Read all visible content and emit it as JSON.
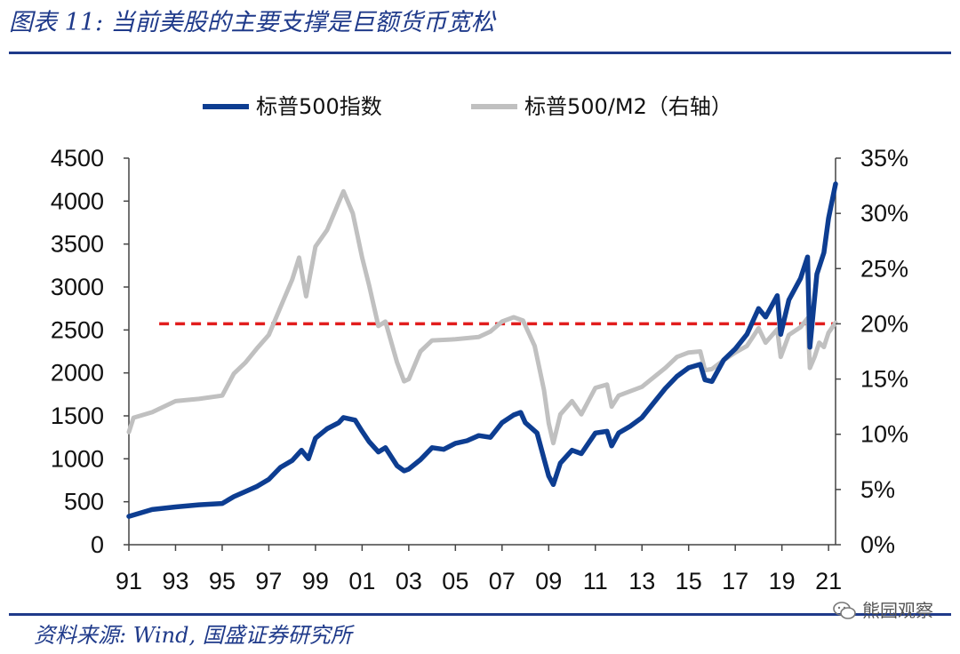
{
  "header": {
    "title": "图表 11:  当前美股的主要支撑是巨额货币宽松"
  },
  "footer": {
    "source": "资料来源:  Wind,  国盛证券研究所",
    "watermark": "熊园观察"
  },
  "chart_data": {
    "type": "line",
    "title": "",
    "xlabel": "",
    "ylabel": "",
    "x_ticks": [
      "91",
      "93",
      "95",
      "97",
      "99",
      "01",
      "03",
      "05",
      "07",
      "09",
      "11",
      "13",
      "15",
      "17",
      "19",
      "21"
    ],
    "x_range": [
      1991.0,
      2021.3
    ],
    "ylim": [
      0,
      4500
    ],
    "y_ticks": [
      "0",
      "500",
      "1000",
      "1500",
      "2000",
      "2500",
      "3000",
      "3500",
      "4000",
      "4500"
    ],
    "y2lim": [
      0,
      35
    ],
    "y2_ticks": [
      "0%",
      "5%",
      "10%",
      "15%",
      "20%",
      "25%",
      "30%",
      "35%"
    ],
    "legend_position": "top",
    "reference_line": {
      "axis": "right",
      "value": 20.0,
      "color": "#e11d1d",
      "style": "dashed",
      "x_start": 1992.3
    },
    "series": [
      {
        "name": "标普500指数",
        "axis": "left",
        "color": "#0d3d91",
        "points": [
          [
            1991.0,
            330
          ],
          [
            1992.0,
            410
          ],
          [
            1993.0,
            440
          ],
          [
            1994.0,
            465
          ],
          [
            1995.0,
            480
          ],
          [
            1995.5,
            560
          ],
          [
            1996.0,
            620
          ],
          [
            1996.5,
            680
          ],
          [
            1997.0,
            760
          ],
          [
            1997.5,
            900
          ],
          [
            1998.0,
            980
          ],
          [
            1998.4,
            1100
          ],
          [
            1998.7,
            1000
          ],
          [
            1999.0,
            1240
          ],
          [
            1999.5,
            1350
          ],
          [
            2000.0,
            1420
          ],
          [
            2000.2,
            1480
          ],
          [
            2000.7,
            1450
          ],
          [
            2001.0,
            1320
          ],
          [
            2001.3,
            1200
          ],
          [
            2001.7,
            1080
          ],
          [
            2002.0,
            1130
          ],
          [
            2002.5,
            920
          ],
          [
            2002.8,
            860
          ],
          [
            2003.0,
            880
          ],
          [
            2003.5,
            990
          ],
          [
            2004.0,
            1130
          ],
          [
            2004.5,
            1110
          ],
          [
            2005.0,
            1180
          ],
          [
            2005.5,
            1210
          ],
          [
            2006.0,
            1270
          ],
          [
            2006.5,
            1250
          ],
          [
            2007.0,
            1420
          ],
          [
            2007.5,
            1510
          ],
          [
            2007.8,
            1540
          ],
          [
            2008.0,
            1420
          ],
          [
            2008.5,
            1300
          ],
          [
            2008.8,
            1000
          ],
          [
            2009.0,
            800
          ],
          [
            2009.2,
            700
          ],
          [
            2009.5,
            950
          ],
          [
            2010.0,
            1100
          ],
          [
            2010.4,
            1060
          ],
          [
            2011.0,
            1300
          ],
          [
            2011.5,
            1320
          ],
          [
            2011.7,
            1150
          ],
          [
            2012.0,
            1300
          ],
          [
            2012.5,
            1380
          ],
          [
            2013.0,
            1480
          ],
          [
            2013.5,
            1650
          ],
          [
            2014.0,
            1820
          ],
          [
            2014.5,
            1960
          ],
          [
            2015.0,
            2060
          ],
          [
            2015.5,
            2100
          ],
          [
            2015.7,
            1920
          ],
          [
            2016.0,
            1900
          ],
          [
            2016.5,
            2150
          ],
          [
            2017.0,
            2280
          ],
          [
            2017.5,
            2450
          ],
          [
            2018.0,
            2750
          ],
          [
            2018.3,
            2650
          ],
          [
            2018.8,
            2900
          ],
          [
            2018.95,
            2450
          ],
          [
            2019.3,
            2850
          ],
          [
            2019.8,
            3100
          ],
          [
            2020.1,
            3350
          ],
          [
            2020.2,
            2300
          ],
          [
            2020.5,
            3150
          ],
          [
            2020.8,
            3400
          ],
          [
            2021.0,
            3800
          ],
          [
            2021.3,
            4200
          ]
        ]
      },
      {
        "name": "标普500/M2（右轴）",
        "axis": "right",
        "color": "#c0c0c0",
        "points": [
          [
            1991.0,
            10.2
          ],
          [
            1991.2,
            11.5
          ],
          [
            1992.0,
            12.0
          ],
          [
            1993.0,
            13.0
          ],
          [
            1994.0,
            13.2
          ],
          [
            1995.0,
            13.5
          ],
          [
            1995.5,
            15.5
          ],
          [
            1996.0,
            16.5
          ],
          [
            1996.5,
            17.8
          ],
          [
            1997.0,
            19.0
          ],
          [
            1997.5,
            21.5
          ],
          [
            1998.0,
            24.0
          ],
          [
            1998.3,
            26.0
          ],
          [
            1998.6,
            22.5
          ],
          [
            1999.0,
            27.0
          ],
          [
            1999.5,
            28.5
          ],
          [
            2000.0,
            31.0
          ],
          [
            2000.2,
            32.0
          ],
          [
            2000.6,
            30.0
          ],
          [
            2001.0,
            26.0
          ],
          [
            2001.3,
            23.5
          ],
          [
            2001.7,
            19.8
          ],
          [
            2002.0,
            20.2
          ],
          [
            2002.5,
            16.5
          ],
          [
            2002.8,
            14.8
          ],
          [
            2003.0,
            15.0
          ],
          [
            2003.5,
            17.5
          ],
          [
            2004.0,
            18.5
          ],
          [
            2005.0,
            18.6
          ],
          [
            2006.0,
            18.8
          ],
          [
            2006.5,
            19.3
          ],
          [
            2007.0,
            20.2
          ],
          [
            2007.5,
            20.6
          ],
          [
            2007.9,
            20.3
          ],
          [
            2008.4,
            18.0
          ],
          [
            2008.8,
            14.0
          ],
          [
            2009.0,
            11.0
          ],
          [
            2009.2,
            9.2
          ],
          [
            2009.5,
            11.8
          ],
          [
            2010.0,
            13.0
          ],
          [
            2010.4,
            11.8
          ],
          [
            2011.0,
            14.2
          ],
          [
            2011.5,
            14.5
          ],
          [
            2011.7,
            12.5
          ],
          [
            2012.0,
            13.5
          ],
          [
            2013.0,
            14.3
          ],
          [
            2014.0,
            16.0
          ],
          [
            2014.5,
            17.0
          ],
          [
            2015.0,
            17.4
          ],
          [
            2015.5,
            17.5
          ],
          [
            2015.7,
            15.8
          ],
          [
            2016.0,
            15.9
          ],
          [
            2016.5,
            16.7
          ],
          [
            2017.0,
            17.4
          ],
          [
            2017.5,
            18.0
          ],
          [
            2018.0,
            19.6
          ],
          [
            2018.3,
            18.3
          ],
          [
            2018.8,
            19.5
          ],
          [
            2018.95,
            17.0
          ],
          [
            2019.3,
            19.0
          ],
          [
            2019.8,
            19.7
          ],
          [
            2020.1,
            20.5
          ],
          [
            2020.2,
            16.0
          ],
          [
            2020.4,
            17.0
          ],
          [
            2020.6,
            18.3
          ],
          [
            2020.8,
            17.9
          ],
          [
            2021.0,
            19.2
          ],
          [
            2021.3,
            20.1
          ]
        ]
      }
    ]
  }
}
